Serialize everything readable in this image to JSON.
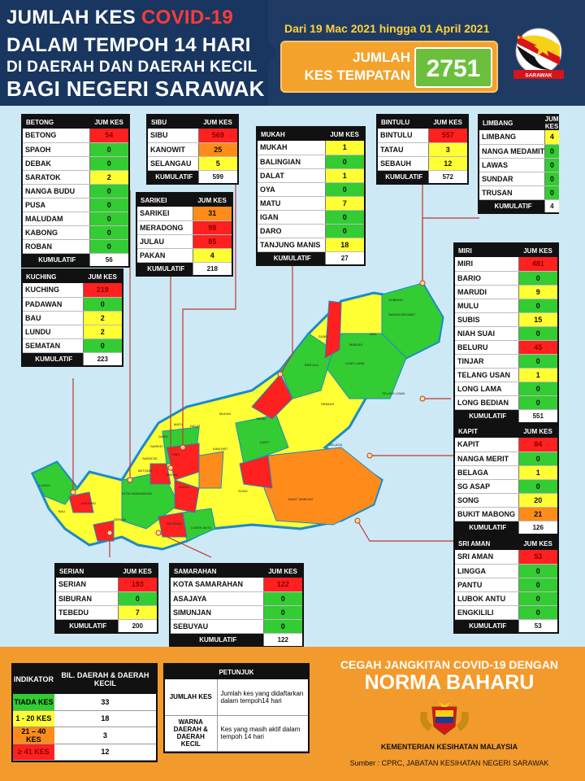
{
  "header": {
    "title_prefix": "JUMLAH KES ",
    "title_covid": "COVID-19",
    "title_line2": "DALAM TEMPOH 14 HARI",
    "title_line3": "DI DAERAH DAN DAERAH KECIL",
    "title_line4": "BAGI NEGERI SARAWAK",
    "date_range": "Dari 19 Mac 2021 hingga 01 April 2021",
    "total_label_1": "JUMLAH",
    "total_label_2": "KES TEMPATAN",
    "total_value": "2751",
    "emblem_text": "SARAWAK"
  },
  "colors": {
    "none": "#33cc33",
    "low": "#ffff33",
    "mid": "#ff8c1a",
    "high": "#ff2020"
  },
  "col_header": "JUM KES",
  "cumulative_label": "KUMULATIF",
  "divisions": {
    "betong": {
      "name": "BETONG",
      "rows": [
        [
          "BETONG",
          "54",
          "r"
        ],
        [
          "SPAOH",
          "0",
          "g"
        ],
        [
          "DEBAK",
          "0",
          "g"
        ],
        [
          "SARATOK",
          "2",
          "y"
        ],
        [
          "NANGA BUDU",
          "0",
          "g"
        ],
        [
          "PUSA",
          "0",
          "g"
        ],
        [
          "MALUDAM",
          "0",
          "g"
        ],
        [
          "KABONG",
          "0",
          "g"
        ],
        [
          "ROBAN",
          "0",
          "g"
        ]
      ],
      "total": "56"
    },
    "sibu": {
      "name": "SIBU",
      "rows": [
        [
          "SIBU",
          "569",
          "r"
        ],
        [
          "KANOWIT",
          "25",
          "o"
        ],
        [
          "SELANGAU",
          "5",
          "y"
        ]
      ],
      "total": "599"
    },
    "sarikei": {
      "name": "SARIKEI",
      "rows": [
        [
          "SARIKEI",
          "31",
          "o"
        ],
        [
          "MERADONG",
          "98",
          "r"
        ],
        [
          "JULAU",
          "85",
          "r"
        ],
        [
          "PAKAN",
          "4",
          "y"
        ]
      ],
      "total": "218"
    },
    "mukah": {
      "name": "MUKAH",
      "rows": [
        [
          "MUKAH",
          "1",
          "y"
        ],
        [
          "BALINGIAN",
          "0",
          "g"
        ],
        [
          "DALAT",
          "1",
          "y"
        ],
        [
          "OYA",
          "0",
          "g"
        ],
        [
          "MATU",
          "7",
          "y"
        ],
        [
          "IGAN",
          "0",
          "g"
        ],
        [
          "DARO",
          "0",
          "g"
        ],
        [
          "TANJUNG MANIS",
          "18",
          "y"
        ]
      ],
      "total": "27"
    },
    "bintulu": {
      "name": "BINTULU",
      "rows": [
        [
          "BINTULU",
          "557",
          "r"
        ],
        [
          "TATAU",
          "3",
          "y"
        ],
        [
          "SEBAUH",
          "12",
          "y"
        ]
      ],
      "total": "572"
    },
    "limbang": {
      "name": "LIMBANG",
      "rows": [
        [
          "LIMBANG",
          "4",
          "y"
        ],
        [
          "NANGA MEDAMIT",
          "0",
          "g"
        ],
        [
          "LAWAS",
          "0",
          "g"
        ],
        [
          "SUNDAR",
          "0",
          "g"
        ],
        [
          "TRUSAN",
          "0",
          "g"
        ]
      ],
      "total": "4"
    },
    "kuching": {
      "name": "KUCHING",
      "rows": [
        [
          "KUCHING",
          "219",
          "r"
        ],
        [
          "PADAWAN",
          "0",
          "g"
        ],
        [
          "BAU",
          "2",
          "y"
        ],
        [
          "LUNDU",
          "2",
          "y"
        ],
        [
          "SEMATAN",
          "0",
          "g"
        ]
      ],
      "total": "223"
    },
    "miri": {
      "name": "MIRI",
      "rows": [
        [
          "MIRI",
          "481",
          "r"
        ],
        [
          "BARIO",
          "0",
          "g"
        ],
        [
          "MARUDI",
          "9",
          "y"
        ],
        [
          "MULU",
          "0",
          "g"
        ],
        [
          "SUBIS",
          "15",
          "y"
        ],
        [
          "NIAH SUAI",
          "0",
          "g"
        ],
        [
          "BELURU",
          "45",
          "r"
        ],
        [
          "TINJAR",
          "0",
          "g"
        ],
        [
          "TELANG USAN",
          "1",
          "y"
        ],
        [
          "LONG LAMA",
          "0",
          "g"
        ],
        [
          "LONG BEDIAN",
          "0",
          "g"
        ]
      ],
      "total": "551"
    },
    "kapit": {
      "name": "KAPIT",
      "rows": [
        [
          "KAPIT",
          "84",
          "r"
        ],
        [
          "NANGA MERIT",
          "0",
          "g"
        ],
        [
          "BELAGA",
          "1",
          "y"
        ],
        [
          "SG ASAP",
          "0",
          "g"
        ],
        [
          "SONG",
          "20",
          "y"
        ],
        [
          "BUKIT MABONG",
          "21",
          "o"
        ]
      ],
      "total": "126"
    },
    "sriaman": {
      "name": "SRI AMAN",
      "rows": [
        [
          "SRI AMAN",
          "53",
          "r"
        ],
        [
          "LINGGA",
          "0",
          "g"
        ],
        [
          "PANTU",
          "0",
          "g"
        ],
        [
          "LUBOK ANTU",
          "0",
          "g"
        ],
        [
          "ENGKILILI",
          "0",
          "g"
        ]
      ],
      "total": "53"
    },
    "serian": {
      "name": "SERIAN",
      "rows": [
        [
          "SERIAN",
          "193",
          "r"
        ],
        [
          "SIBURAN",
          "0",
          "g"
        ],
        [
          "TEBEDU",
          "7",
          "y"
        ]
      ],
      "total": "200"
    },
    "samarahan": {
      "name": "SAMARAHAN",
      "rows": [
        [
          "KOTA SAMARAHAN",
          "122",
          "r"
        ],
        [
          "ASAJAYA",
          "0",
          "g"
        ],
        [
          "SIMUNJAN",
          "0",
          "g"
        ],
        [
          "SEBUYAU",
          "0",
          "g"
        ]
      ],
      "total": "122"
    }
  },
  "map_labels": [
    "LIMBANG",
    "NANGA MEDAMIT",
    "MIRI",
    "SUBIS",
    "MARUDI",
    "TELANG USAN",
    "LONG LAMA",
    "BINTULU",
    "SEBAUH",
    "TATAU",
    "BELAGA",
    "KAPIT",
    "SONG",
    "BUKIT MABONG",
    "MUKAH",
    "DALAT",
    "MATU",
    "DARO",
    "SIBU",
    "KANOWIT",
    "SARIKEI",
    "JULAU",
    "PAKAN",
    "BETONG",
    "SARATOK",
    "SRI AMAN",
    "LUBOK ANTU",
    "SERIAN",
    "KUCHING",
    "BAU",
    "LUNDU",
    "KOTA SAMARAHAN"
  ],
  "legend": {
    "col1": "INDIKATOR",
    "col2": "BIL. DAERAH & DAERAH KECIL",
    "rows": [
      [
        "TIADA KES",
        "33",
        "g"
      ],
      [
        "1 - 20 KES",
        "18",
        "y"
      ],
      [
        "21 – 40 KES",
        "3",
        "o"
      ],
      [
        "≥ 41 KES",
        "12",
        "r"
      ]
    ]
  },
  "guide": {
    "title": "PETUNJUK",
    "rows": [
      [
        "JUMLAH KES",
        "Jumlah kes yang didaftarkan dalam tempoh14 hari"
      ],
      [
        "WARNA DAERAH & DAERAH KECIL",
        "Kes yang masih aktif dalam tempoh 14 hari"
      ]
    ]
  },
  "footer": {
    "slogan1": "CEGAH JANGKITAN COVID-19 DENGAN",
    "slogan2": "NORMA BAHARU",
    "ministry": "KEMENTERIAN KESIHATAN MALAYSIA",
    "source": "Sumber : CPRC, JABATAN KESIHATAN NEGERI SARAWAK"
  }
}
